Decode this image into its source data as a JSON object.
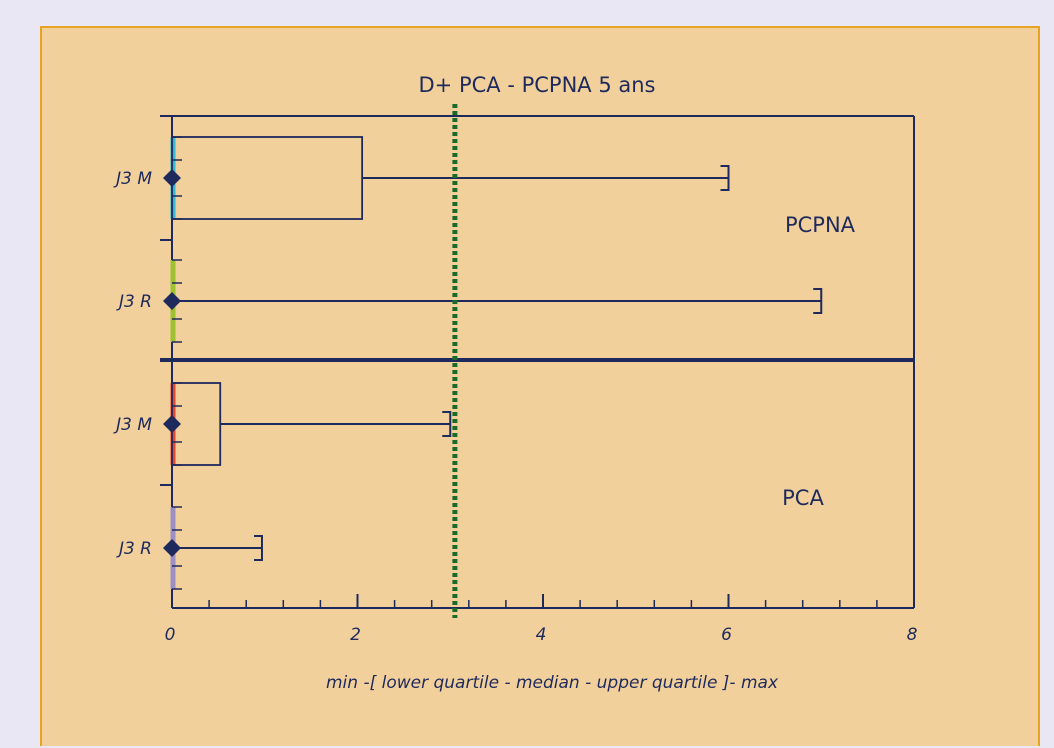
{
  "chart_data": {
    "type": "boxplot",
    "title": "D+ PCA - PCPNA 5 ans",
    "xlabel": "min -[ lower quartile - median - upper quartile ]- max",
    "ylabel": "",
    "xlim": [
      0,
      8
    ],
    "x_ticks": [
      0,
      2,
      4,
      6,
      8
    ],
    "x_minor_step": 0.4,
    "reference_line": {
      "x": 3.05,
      "color": "#1a6b2a",
      "style": "dotted"
    },
    "groups": [
      {
        "label": "PCPNA",
        "rows": [
          {
            "label": "J3 M",
            "min": 0,
            "q1": 0,
            "median": 0,
            "q3": 2.05,
            "max": 6,
            "color": "#35b7d6"
          },
          {
            "label": "J3 R",
            "min": 0,
            "q1": 0,
            "median": 0,
            "q3": 0,
            "max": 7,
            "color": "#9ec12f"
          }
        ]
      },
      {
        "label": "PCA",
        "rows": [
          {
            "label": "J3 M",
            "min": 0,
            "q1": 0,
            "median": 0,
            "q3": 0.52,
            "max": 3.0,
            "color": "#e8472f"
          },
          {
            "label": "J3 R",
            "min": 0,
            "q1": 0,
            "median": 0,
            "q3": 0,
            "max": 0.97,
            "color": "#9b8fc4"
          }
        ]
      }
    ]
  },
  "colors": {
    "background": "#e9e7f4",
    "panel": "#f1d09c",
    "panel_border": "#e8a321",
    "ink": "#1f2a5c"
  }
}
